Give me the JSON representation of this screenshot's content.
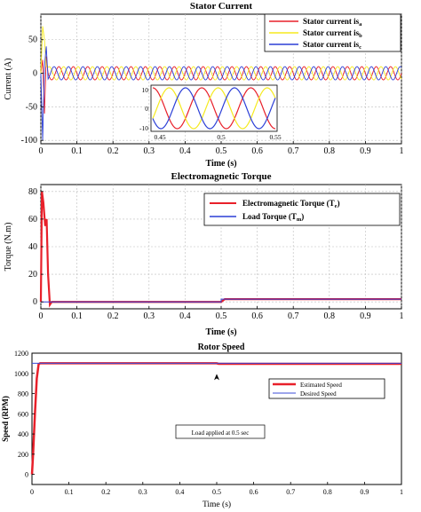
{
  "colors": {
    "red": "#e8202a",
    "yellow": "#f5ea1f",
    "blue": "#2c3fd6",
    "line_blue": "#3b4bd8",
    "axis": "#000000",
    "grid": "#bdbdbd"
  },
  "chart_data": [
    {
      "type": "line",
      "title": "Stator Current",
      "xlabel": "Time (s)",
      "ylabel": "Current (A)",
      "xlim": [
        0,
        1
      ],
      "ylim": [
        -105,
        88
      ],
      "xticks": [
        "0",
        "0.1",
        "0.2",
        "0.3",
        "0.4",
        "0.5",
        "0.6",
        "0.7",
        "0.8",
        "0.9",
        "1"
      ],
      "yticks": [
        "-100",
        "-50",
        "0",
        "50"
      ],
      "ytick_values": [
        -100,
        -50,
        0,
        50
      ],
      "grid": true,
      "legend_position": "top-right",
      "legend": [
        {
          "text": "Stator current is",
          "sub": "a"
        },
        {
          "text": "Stator current is",
          "sub": "b"
        },
        {
          "text": "Stator current is",
          "sub": "c"
        }
      ],
      "series": [
        {
          "name": "Stator current isa",
          "color_key": "red",
          "steady_amplitude": 10,
          "frequency_hz": 25,
          "phase_deg": 0,
          "startup_peaks": [
            [
              0.005,
              20
            ],
            [
              0.01,
              -60
            ],
            [
              0.015,
              25
            ]
          ]
        },
        {
          "name": "Stator current isb",
          "color_key": "yellow",
          "steady_amplitude": 10,
          "frequency_hz": 25,
          "phase_deg": -120,
          "startup_peaks": [
            [
              0.005,
              70
            ],
            [
              0.01,
              50
            ],
            [
              0.015,
              10
            ]
          ]
        },
        {
          "name": "Stator current isc",
          "color_key": "blue",
          "steady_amplitude": 10,
          "frequency_hz": 25,
          "phase_deg": 120,
          "startup_peaks": [
            [
              0.005,
              -100
            ],
            [
              0.01,
              10
            ],
            [
              0.015,
              40
            ]
          ]
        }
      ],
      "inset": {
        "xlim": [
          0.45,
          0.55
        ],
        "ylim": [
          -10,
          10
        ],
        "xticks": [
          "0.45",
          "0.5",
          "0.55"
        ],
        "yticks": [
          "10",
          "0",
          "-10"
        ]
      }
    },
    {
      "type": "line",
      "title": "Electromagnetic Torque",
      "xlabel": "Time (s)",
      "ylabel": "Torque (N.m)",
      "xlim": [
        0,
        1
      ],
      "ylim": [
        -5,
        85
      ],
      "xticks": [
        "0",
        "0.1",
        "0.2",
        "0.3",
        "0.4",
        "0.5",
        "0.6",
        "0.7",
        "0.8",
        "0.9",
        "1"
      ],
      "yticks": [
        "0",
        "20",
        "40",
        "60",
        "80"
      ],
      "ytick_values": [
        0,
        20,
        40,
        60,
        80
      ],
      "grid": true,
      "legend_position": "top-right",
      "legend": [
        {
          "text": "Electromagnetic Torque (T",
          "sub": "e",
          "tail": ")"
        },
        {
          "text": "Load Torque (T",
          "sub": "m",
          "tail": ")"
        }
      ],
      "series": [
        {
          "name": "Electromagnetic Torque (Te)",
          "color_key": "red",
          "x": [
            0,
            0.003,
            0.007,
            0.012,
            0.016,
            0.02,
            0.025,
            0.03,
            0.035,
            0.5,
            0.51,
            1
          ],
          "y": [
            0,
            80,
            72,
            55,
            60,
            20,
            -2,
            0,
            0,
            0,
            2,
            2
          ]
        },
        {
          "name": "Load Torque (Tm)",
          "color_key": "blue",
          "x": [
            0,
            0.5,
            0.5,
            1
          ],
          "y": [
            0,
            0,
            2,
            2
          ]
        }
      ]
    },
    {
      "type": "line",
      "title": "Rotor Speed",
      "xlabel": "Time (s)",
      "ylabel": "Speed (RPM)",
      "xlim": [
        0,
        1
      ],
      "ylim": [
        -100,
        1200
      ],
      "xticks": [
        "0",
        "0.1",
        "0.2",
        "0.3",
        "0.4",
        "0.5",
        "0.6",
        "0.7",
        "0.8",
        "0.9",
        "1"
      ],
      "yticks": [
        "0",
        "200",
        "400",
        "600",
        "800",
        "1000",
        "1200"
      ],
      "ytick_values": [
        0,
        200,
        400,
        600,
        800,
        1000,
        1200
      ],
      "grid": false,
      "legend_position": "right",
      "legend": [
        {
          "text": "Estimated Speed",
          "sub": ""
        },
        {
          "text": "Desired Speed",
          "sub": ""
        }
      ],
      "annotation": "Load applied at 0.5 sec",
      "annotation_x": 0.5,
      "series": [
        {
          "name": "Estimated Speed",
          "color_key": "red",
          "x": [
            0,
            0.003,
            0.008,
            0.013,
            0.018,
            0.022,
            0.03,
            0.5,
            0.505,
            1
          ],
          "y": [
            0,
            200,
            600,
            950,
            1090,
            1100,
            1100,
            1100,
            1095,
            1095
          ]
        },
        {
          "name": "Desired Speed",
          "color_key": "line_blue",
          "x": [
            0,
            1
          ],
          "y": [
            1100,
            1100
          ]
        }
      ]
    }
  ]
}
